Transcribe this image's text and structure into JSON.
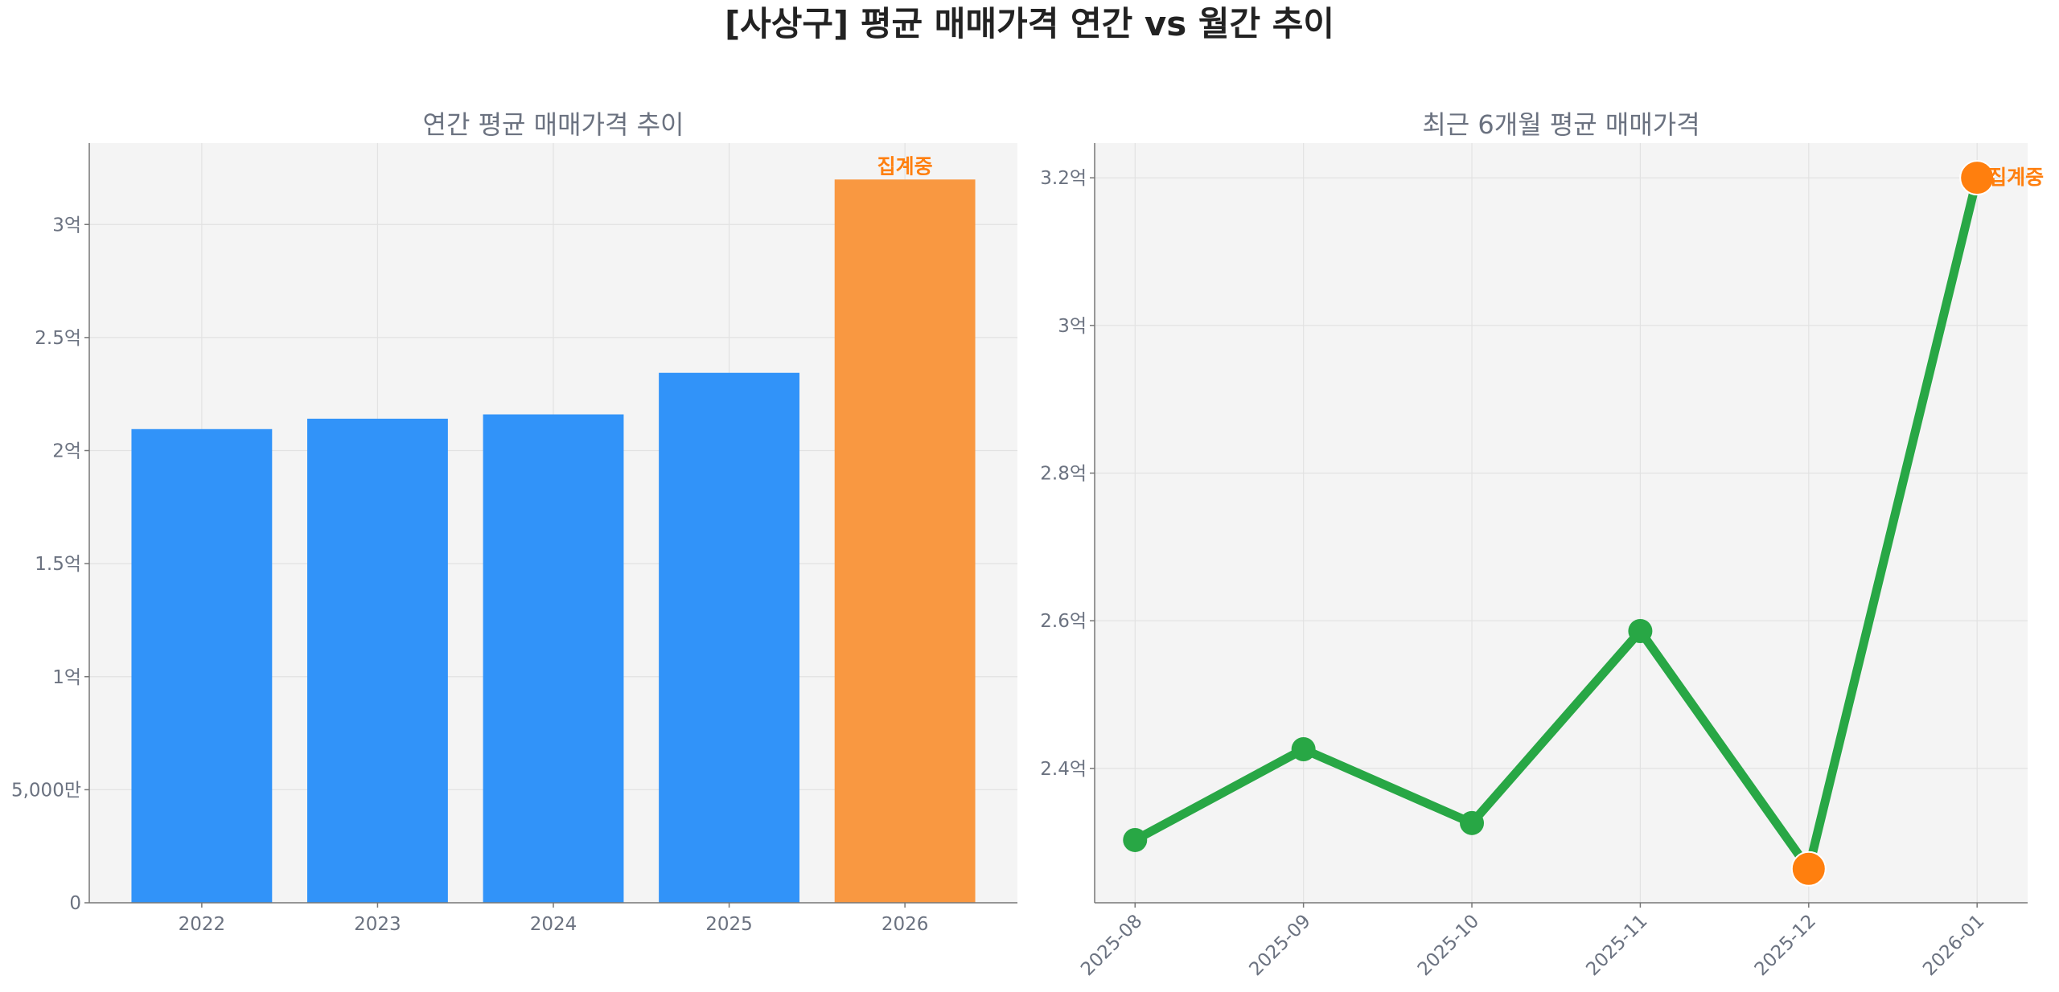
{
  "title": "[사상구] 평균 매매가격 연간 vs 월간 추이",
  "colors": {
    "bar": "#3193f9",
    "bar_partial": "#f99841",
    "line": "#28a745",
    "marker_highlight": "#ff7f0e",
    "annotation": "#ff7f0e",
    "plot_bg": "#f4f4f4"
  },
  "chart_data": [
    {
      "type": "bar",
      "title": "연간 평균 매매가격 추이",
      "categories": [
        "2022",
        "2023",
        "2024",
        "2025",
        "2026"
      ],
      "values": [
        2.095,
        2.141,
        2.16,
        2.344,
        3.199
      ],
      "unit": "억",
      "ylim": [
        0,
        3.36
      ],
      "yticks": [
        0,
        0.5,
        1,
        1.5,
        2,
        2.5,
        3
      ],
      "ytick_labels": [
        "0",
        "5,000만",
        "1억",
        "1.5억",
        "2억",
        "2.5억",
        "3억"
      ],
      "highlight_index": 4,
      "annotation": {
        "text": "집계중",
        "category": "2026"
      },
      "grid": true
    },
    {
      "type": "line",
      "title": "최근 6개월 평균 매매가격",
      "x": [
        "2025-08",
        "2025-09",
        "2025-10",
        "2025-11",
        "2025-12",
        "2026-01"
      ],
      "values": [
        2.303,
        2.426,
        2.326,
        2.586,
        2.264,
        3.2
      ],
      "unit": "억",
      "ylim": [
        2.218,
        3.247
      ],
      "yticks": [
        2.4,
        2.6,
        2.8,
        3.0,
        3.2
      ],
      "ytick_labels": [
        "2.4억",
        "2.6억",
        "2.8억",
        "3억",
        "3.2억"
      ],
      "highlight_indices": [
        4,
        5
      ],
      "annotation": {
        "text": "집계중",
        "x": "2026-01"
      },
      "grid": true
    }
  ]
}
